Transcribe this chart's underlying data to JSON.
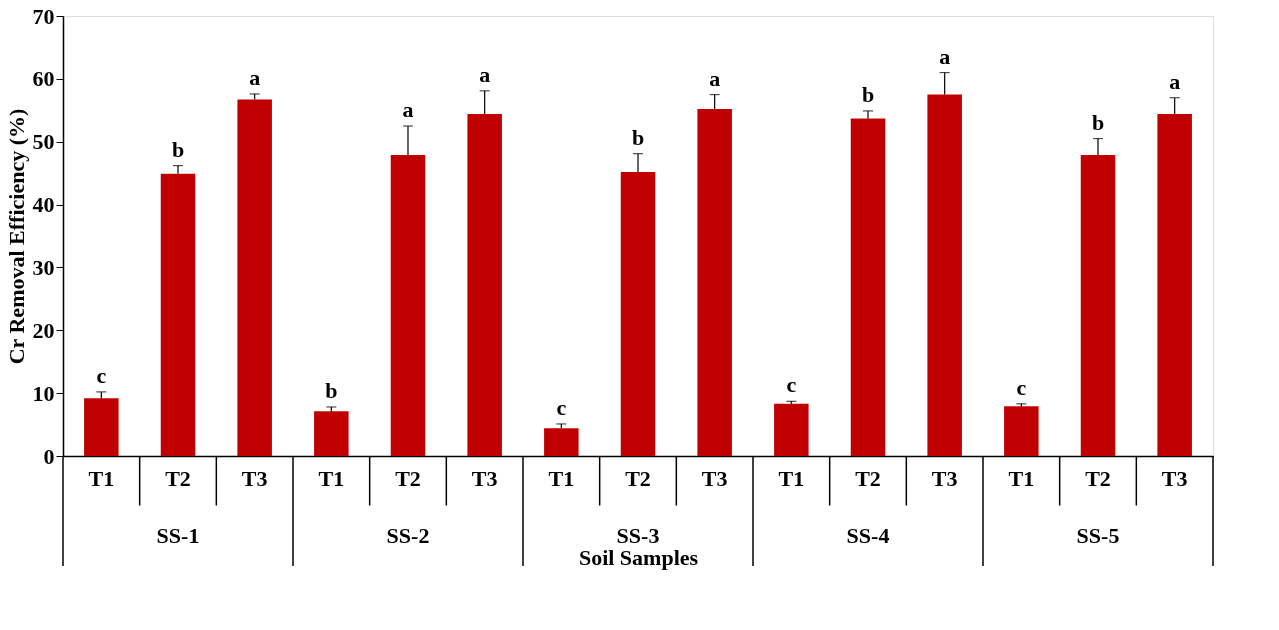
{
  "chart_data": {
    "type": "bar",
    "xlabel": "Soil Samples",
    "ylabel": "Cr Removal Efficiency (%)",
    "categories": [
      "T1",
      "T2",
      "T3",
      "T1",
      "T2",
      "T3",
      "T1",
      "T2",
      "T3",
      "T1",
      "T2",
      "T3",
      "T1",
      "T2",
      "T3"
    ],
    "annotations": [
      "SS-1",
      "SS-2",
      "SS-3",
      "SS-4",
      "SS-5"
    ],
    "values": [
      9.2,
      44.9,
      56.7,
      7.1,
      47.9,
      54.4,
      4.4,
      45.2,
      55.2,
      8.3,
      53.7,
      57.5,
      7.9,
      47.9,
      54.4
    ],
    "errors": [
      1.0,
      1.3,
      0.9,
      0.7,
      4.6,
      3.7,
      0.7,
      2.9,
      2.3,
      0.4,
      1.2,
      3.5,
      0.4,
      2.6,
      2.6
    ],
    "value_labels": [
      "c",
      "b",
      "a",
      "b",
      "a",
      "a",
      "c",
      "b",
      "a",
      "c",
      "b",
      "a",
      "c",
      "b",
      "a"
    ],
    "color": "#c00000",
    "ylim": [
      0,
      70
    ],
    "yticks": [
      0,
      10,
      20,
      30,
      40,
      50,
      60,
      70
    ],
    "grid": false
  }
}
